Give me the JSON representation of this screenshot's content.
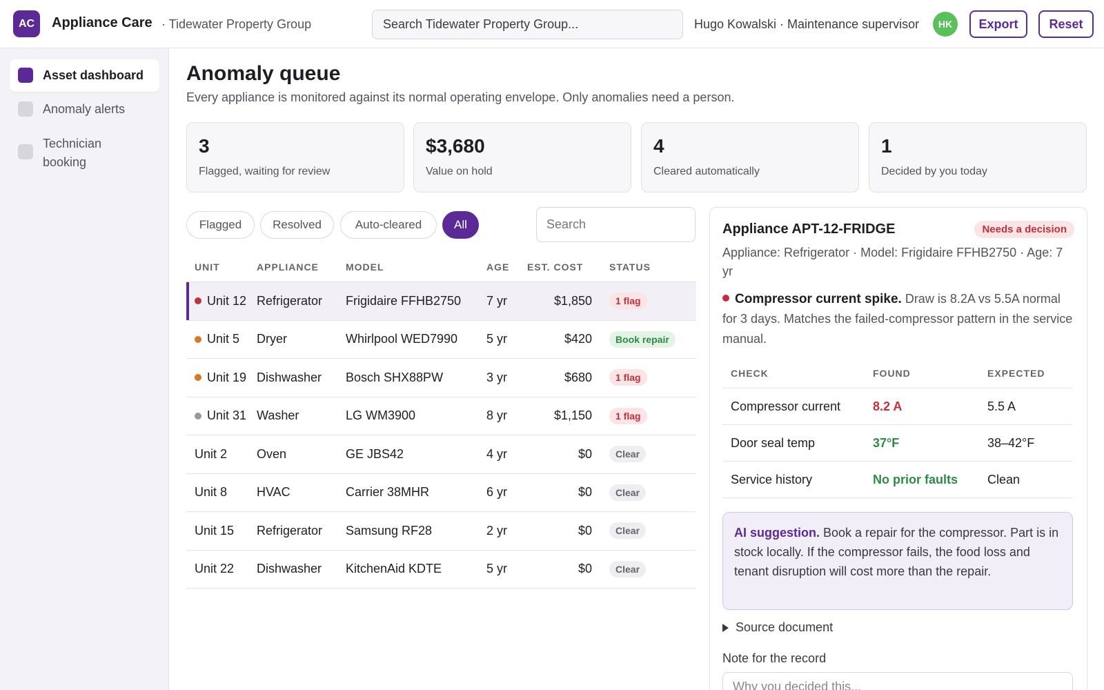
{
  "header": {
    "logo_initials": "AC",
    "app_title": "Appliance Care",
    "org": "· Tidewater Property Group",
    "search_placeholder": "Search Tidewater Property Group...",
    "user": "Hugo Kowalski · Maintenance supervisor",
    "avatar_initials": "HK",
    "export_label": "Export",
    "reset_label": "Reset"
  },
  "sidebar": {
    "items": [
      {
        "label": "Asset dashboard",
        "active": true
      },
      {
        "label": "Anomaly alerts",
        "active": false
      },
      {
        "label": "Technician booking",
        "active": false
      }
    ]
  },
  "main": {
    "title": "Anomaly queue",
    "subtitle": "Every appliance is monitored against its normal operating envelope. Only anomalies need a person."
  },
  "kpis": [
    {
      "value": "3",
      "label": "Flagged, waiting for review"
    },
    {
      "value": "$3,680",
      "label": "Value on hold"
    },
    {
      "value": "4",
      "label": "Cleared automatically"
    },
    {
      "value": "1",
      "label": "Decided by you today"
    }
  ],
  "filters": {
    "chips": [
      "Flagged",
      "Resolved",
      "Auto-cleared",
      "All"
    ],
    "active": "All",
    "search_placeholder": "Search"
  },
  "table": {
    "columns": [
      "UNIT",
      "APPLIANCE",
      "MODEL",
      "AGE",
      "EST. COST",
      "STATUS"
    ],
    "rows": [
      {
        "unit": "Unit 12",
        "appliance": "Refrigerator",
        "model": "Frigidaire FFHB2750",
        "age": "7 yr",
        "cost": "$1,850",
        "status": "1 flag",
        "status_kind": "flag",
        "dot": "#c0313c",
        "selected": true
      },
      {
        "unit": "Unit 5",
        "appliance": "Dryer",
        "model": "Whirlpool WED7990",
        "age": "5 yr",
        "cost": "$420",
        "status": "Book repair",
        "status_kind": "book",
        "dot": "#d9781c",
        "selected": false
      },
      {
        "unit": "Unit 19",
        "appliance": "Dishwasher",
        "model": "Bosch SHX88PW",
        "age": "3 yr",
        "cost": "$680",
        "status": "1 flag",
        "status_kind": "flag",
        "dot": "#d9781c",
        "selected": false
      },
      {
        "unit": "Unit 31",
        "appliance": "Washer",
        "model": "LG WM3900",
        "age": "8 yr",
        "cost": "$1,150",
        "status": "1 flag",
        "status_kind": "flag",
        "dot": "#9a97a0",
        "selected": false
      },
      {
        "unit": "Unit 2",
        "appliance": "Oven",
        "model": "GE JBS42",
        "age": "4 yr",
        "cost": "$0",
        "status": "Clear",
        "status_kind": "clear",
        "dot": null,
        "selected": false
      },
      {
        "unit": "Unit 8",
        "appliance": "HVAC",
        "model": "Carrier 38MHR",
        "age": "6 yr",
        "cost": "$0",
        "status": "Clear",
        "status_kind": "clear",
        "dot": null,
        "selected": false
      },
      {
        "unit": "Unit 15",
        "appliance": "Refrigerator",
        "model": "Samsung RF28",
        "age": "2 yr",
        "cost": "$0",
        "status": "Clear",
        "status_kind": "clear",
        "dot": null,
        "selected": false
      },
      {
        "unit": "Unit 22",
        "appliance": "Dishwasher",
        "model": "KitchenAid KDTE",
        "age": "5 yr",
        "cost": "$0",
        "status": "Clear",
        "status_kind": "clear",
        "dot": null,
        "selected": false
      }
    ]
  },
  "detail": {
    "title": "Appliance APT-12-FRIDGE",
    "badge": "Needs a decision",
    "meta": "Appliance: Refrigerator · Model: Frigidaire FFHB2750 · Age: 7 yr",
    "finding_title": "Compressor current spike.",
    "finding_text": " Draw is 8.2A vs 5.5A normal for 3 days. Matches the failed-compressor pattern in the service manual.",
    "checks": {
      "columns": [
        "CHECK",
        "FOUND",
        "EXPECTED"
      ],
      "rows": [
        {
          "check": "Compressor current",
          "found": "8.2 A",
          "expected": "5.5 A",
          "tone": "bad"
        },
        {
          "check": "Door seal temp",
          "found": "37°F",
          "expected": "38–42°F",
          "tone": "good"
        },
        {
          "check": "Service history",
          "found": "No prior faults",
          "expected": "Clean",
          "tone": "good"
        }
      ]
    },
    "ai_label": "AI suggestion.",
    "ai_text": " Book a repair for the compressor. Part is in stock locally. If the compressor fails, the food loss and tenant disruption will cost more than the repair.",
    "source_label": "Source document",
    "note_label": "Note for the record",
    "note_placeholder": "Why you decided this..."
  }
}
